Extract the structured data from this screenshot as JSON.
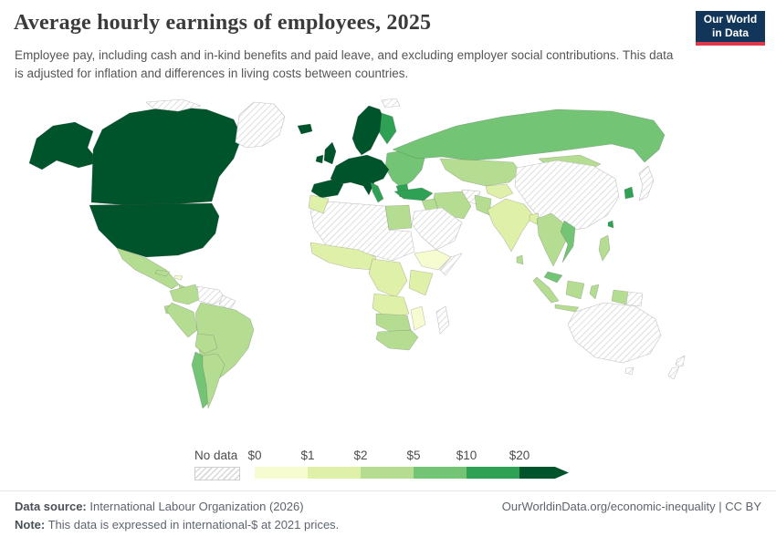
{
  "header": {
    "title": "Average hourly earnings of employees, 2025",
    "subtitle": "Employee pay, including cash and in-kind benefits and paid leave, and excluding employer social contributions. This data is adjusted for inflation and differences in living costs between countries.",
    "logo_line1": "Our World",
    "logo_line2": "in Data"
  },
  "legend": {
    "no_data_label": "No data"
  },
  "footer": {
    "source_label": "Data source:",
    "source_text": "International Labour Organization (2026)",
    "right_text": "OurWorldinData.org/economic-inequality | CC BY",
    "note_label": "Note:",
    "note_text": "This data is expressed in international-$ at 2021 prices."
  },
  "chart_data": {
    "type": "heatmap",
    "title": "Average hourly earnings of employees, 2025",
    "unit": "international-$ at 2021 prices",
    "legend_tick_labels": [
      "$0",
      "$1",
      "$2",
      "$5",
      "$10",
      "$20"
    ],
    "legend_bins": [
      "0-1",
      "1-2",
      "2-5",
      "5-10",
      "10-20",
      "20+"
    ],
    "palette": [
      "#f7fbd0",
      "#dff0a8",
      "#b4dd92",
      "#74c476",
      "#2fa154",
      "#00542b"
    ],
    "no_data_style": "gray-diagonal-hatch",
    "regions": {
      "united-states": "20+",
      "canada": "20+",
      "greenland": "no-data",
      "arctic-islands": "no-data",
      "svalbard": "no-data",
      "mexico": "2-5",
      "central-america": "2-5",
      "cuba": "2-5",
      "haiti": "0-1",
      "colombia": "2-5",
      "venezuela": "no-data",
      "guyanas": "no-data",
      "brazil": "2-5",
      "peru": "2-5",
      "ecuador": "2-5",
      "bolivia": "2-5",
      "chile": "5-10",
      "argentina": "2-5",
      "iceland": "20+",
      "united-kingdom": "20+",
      "ireland": "20+",
      "scandinavia": "20+",
      "finland": "10-20",
      "western-europe": "20+",
      "italy": "10-20",
      "iberia": "20+",
      "eastern-europe": "5-10",
      "balkans": "10-20",
      "turkey": "10-20",
      "russia": "5-10",
      "kazakhstan": "2-5",
      "central-asia": "1-2",
      "china": "no-data",
      "mongolia": "2-5",
      "japan": "no-data",
      "south-korea": "10-20",
      "taiwan": "10-20",
      "india": "1-2",
      "bangladesh": "1-2",
      "pakistan": "2-5",
      "afghanistan": "no-data",
      "iran": "2-5",
      "iraq": "2-5",
      "saudi-arabia": "no-data",
      "egypt": "2-5",
      "north-africa": "no-data",
      "morocco": "1-2",
      "west-africa": "1-2",
      "ethiopia": "0-1",
      "somalia": "no-data",
      "central-africa": "1-2",
      "east-africa": "1-2",
      "angola-zambia": "1-2",
      "namibia-botswana": "2-5",
      "mozambique": "0-1",
      "south-africa": "2-5",
      "madagascar": "no-data",
      "sri-lanka": "2-5",
      "myanmar-thailand": "2-5",
      "vietnam": "5-10",
      "malaysia": "5-10",
      "indonesia": "2-5",
      "philippines": "2-5",
      "papua-new-guinea": "no-data",
      "australia": "no-data",
      "new-zealand": "no-data"
    }
  }
}
